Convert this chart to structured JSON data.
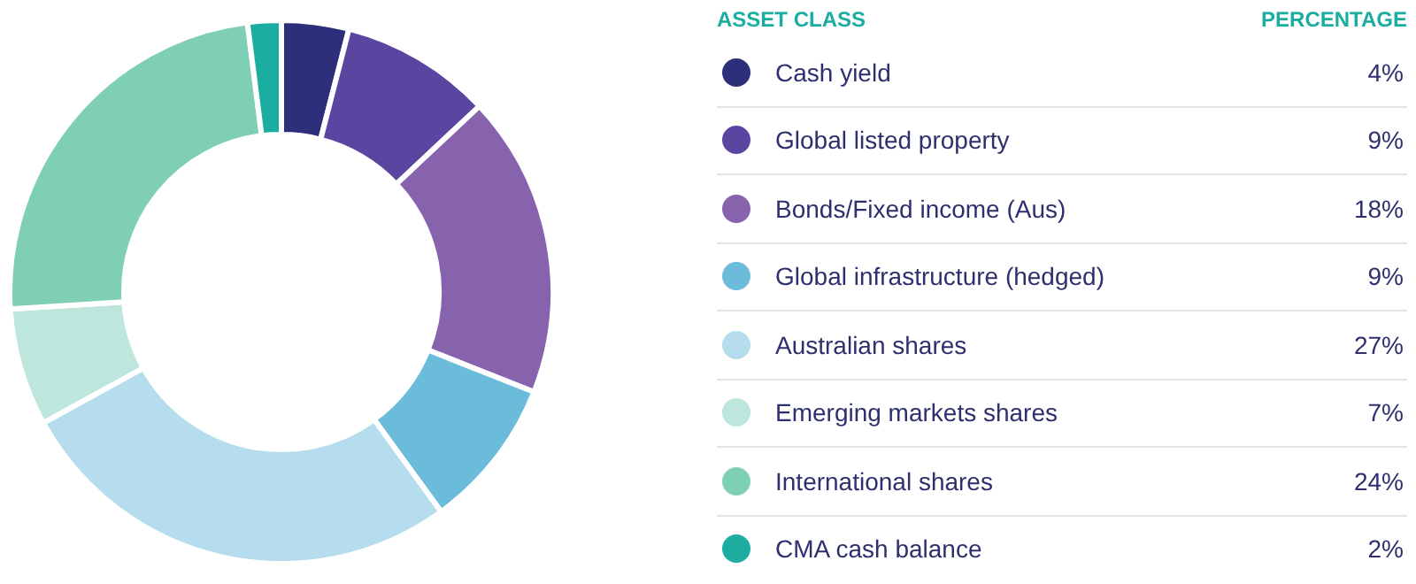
{
  "chart_data": {
    "type": "donut",
    "legend": "right",
    "legend_title": "ASSET CLASS",
    "annotations": [
      "PERCENTAGE"
    ],
    "categories": [
      "Cash yield",
      "Global listed property",
      "Bonds/Fixed income (Aus)",
      "Global infrastructure (hedged)",
      "Australian shares",
      "Emerging markets shares",
      "International shares",
      "CMA cash balance"
    ],
    "values": [
      4,
      9,
      18,
      9,
      27,
      7,
      24,
      2
    ],
    "value_labels": [
      "4%",
      "9%",
      "18%",
      "9%",
      "27%",
      "7%",
      "24%",
      "2%"
    ],
    "colors": [
      "#2e2f7a",
      "#5a45a0",
      "#8763ad",
      "#6bbcdb",
      "#b5dded",
      "#bde6dc",
      "#7fcfb6",
      "#1aada0"
    ]
  }
}
